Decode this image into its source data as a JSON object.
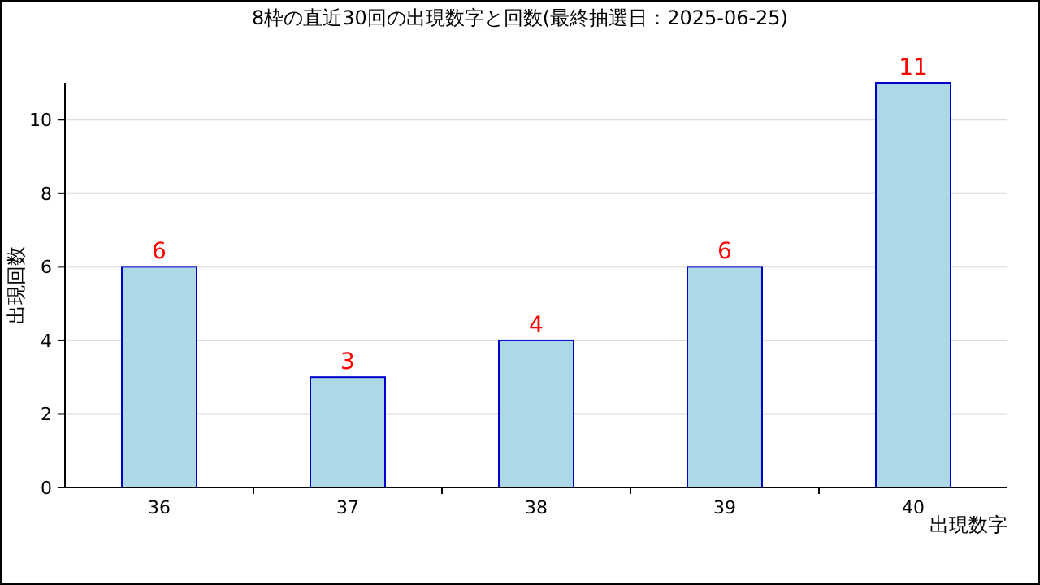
{
  "chart_data": {
    "type": "bar",
    "title": "8枠の直近30回の出現数字と回数(最終抽選日：2025-06-25)",
    "xlabel": "出現数字",
    "ylabel": "出現回数",
    "categories": [
      "36",
      "37",
      "38",
      "39",
      "40"
    ],
    "values": [
      6,
      3,
      4,
      6,
      11
    ],
    "color": "#add8e6",
    "ylim": [
      0,
      11
    ],
    "yticks": [
      0,
      2,
      4,
      6,
      8,
      10
    ],
    "grid": "y",
    "data_labels": true
  }
}
